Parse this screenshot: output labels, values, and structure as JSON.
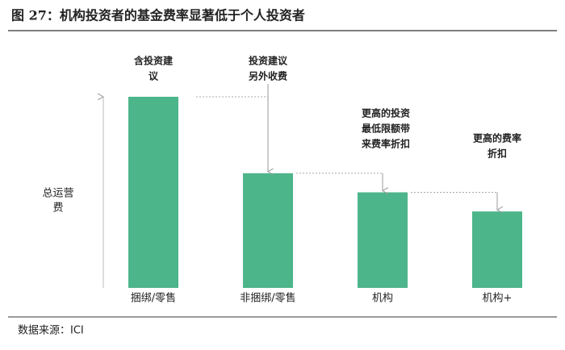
{
  "chart_data": {
    "type": "bar",
    "title": "图 27：机构投资者的基金费率显著低于个人投资者",
    "ylabel": [
      "总运营",
      "费"
    ],
    "categories": [
      "捆绑/零售",
      "非捆绑/零售",
      "机构",
      "机构+"
    ],
    "values": [
      100,
      60,
      50,
      40
    ],
    "ylim": [
      0,
      100
    ],
    "color": "#4cb58a",
    "annotations": [
      {
        "lines": [
          "含投资建",
          "议"
        ]
      },
      {
        "lines": [
          "投资建议",
          "另外收费"
        ]
      },
      {
        "lines": [
          "更高的投资",
          "最低限额带",
          "来费率折扣"
        ]
      },
      {
        "lines": [
          "更高的费率",
          "折扣"
        ]
      }
    ],
    "source": "数据来源：ICI"
  }
}
